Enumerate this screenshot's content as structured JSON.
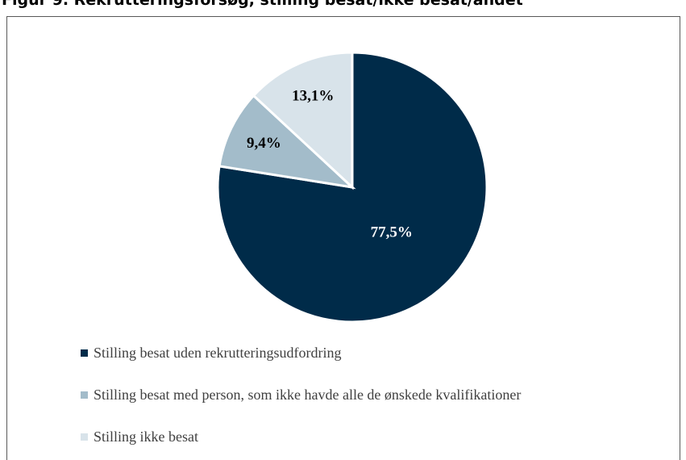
{
  "figure": {
    "title": "Figur 9. Rekrutteringsforsøg, stilling besat/ikke besat/andet"
  },
  "chart_data": {
    "type": "pie",
    "start": "top",
    "direction": "clockwise",
    "slices": [
      {
        "label": "Stilling besat uden rekrutteringsudfordring",
        "value": 77.5,
        "display": "77,5%",
        "color": "#002b49",
        "label_color": "#ffffff"
      },
      {
        "label": "Stilling besat med person, som ikke havde alle de ønskede kvalifikationer",
        "value": 9.4,
        "display": "9,4%",
        "color": "#a3bcca",
        "label_color": "#000000"
      },
      {
        "label": "Stilling ikke besat",
        "value": 13.1,
        "display": "13,1%",
        "color": "#d8e3ea",
        "label_color": "#000000"
      }
    ],
    "legend_position": "bottom-left"
  }
}
